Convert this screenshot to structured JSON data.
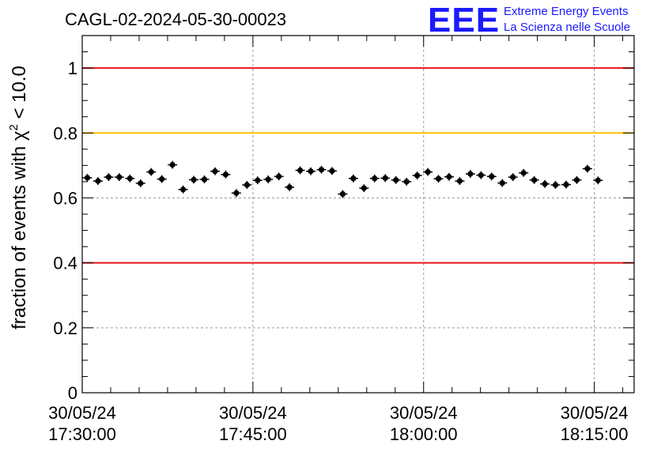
{
  "chart_data": {
    "type": "scatter",
    "title": "CAGL-02-2024-05-30-00023",
    "ylabel_prefix": "fraction of events with ",
    "ylabel_symbol": "χ",
    "ylabel_superscript": "2",
    "ylabel_suffix": " < 10.0",
    "ylim": [
      0,
      1.1
    ],
    "yticks": [
      0,
      0.2,
      0.4,
      0.6,
      0.8,
      1
    ],
    "ytick_labels": [
      "0",
      "0.2",
      "0.4",
      "0.6",
      "0.8",
      "1"
    ],
    "xlim_minutes": [
      0,
      48.5
    ],
    "xticks": [
      {
        "minutes": 0,
        "date": "30/05/24",
        "time": "17:30:00"
      },
      {
        "minutes": 15,
        "date": "30/05/24",
        "time": "17:45:00"
      },
      {
        "minutes": 30,
        "date": "30/05/24",
        "time": "18:00:00"
      },
      {
        "minutes": 45,
        "date": "30/05/24",
        "time": "18:15:00"
      }
    ],
    "grid": true,
    "reference_lines": [
      {
        "y": 1.0,
        "color": "#e8141a"
      },
      {
        "y": 0.8,
        "color": "#ffc000"
      },
      {
        "y": 0.4,
        "color": "#e8141a"
      }
    ],
    "series": [
      {
        "color": "#000000",
        "x_step_minutes": 0.935,
        "x_first_minutes": 0.45,
        "y_error": 0.012,
        "y": [
          0.662,
          0.652,
          0.664,
          0.664,
          0.66,
          0.645,
          0.68,
          0.658,
          0.702,
          0.626,
          0.656,
          0.657,
          0.682,
          0.672,
          0.615,
          0.64,
          0.654,
          0.657,
          0.666,
          0.633,
          0.685,
          0.682,
          0.687,
          0.683,
          0.612,
          0.66,
          0.63,
          0.66,
          0.661,
          0.655,
          0.65,
          0.669,
          0.68,
          0.659,
          0.665,
          0.652,
          0.674,
          0.67,
          0.666,
          0.646,
          0.664,
          0.677,
          0.655,
          0.643,
          0.64,
          0.641,
          0.655,
          0.69,
          0.654
        ]
      }
    ]
  },
  "logo": {
    "mark": "EEE",
    "line1": "Extreme Energy Events",
    "line2": "La Scienza nelle Scuole",
    "color": "#1a1aff"
  }
}
